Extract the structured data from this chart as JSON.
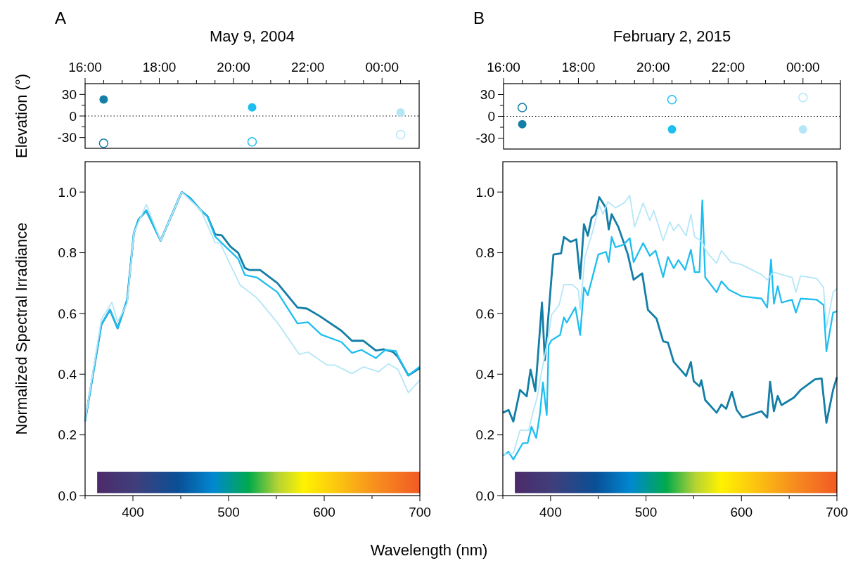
{
  "chart_data": [
    {
      "type": "scatter",
      "title": "May 9, 2004",
      "ylabel": "Elevation (°)",
      "annotations": [
        "A"
      ],
      "marker": "circle",
      "xlim": [
        16,
        25
      ],
      "xticks": [
        {
          "value": 16,
          "label": "16:00"
        },
        {
          "value": 16.5,
          "label": null
        },
        {
          "value": 17,
          "label": null
        },
        {
          "value": 17.5,
          "label": null
        },
        {
          "value": 18,
          "label": "18:00"
        },
        {
          "value": 18.5,
          "label": null
        },
        {
          "value": 19,
          "label": null
        },
        {
          "value": 19.5,
          "label": null
        },
        {
          "value": 20,
          "label": "20:00"
        },
        {
          "value": 20.5,
          "label": null
        },
        {
          "value": 21,
          "label": null
        },
        {
          "value": 21.5,
          "label": null
        },
        {
          "value": 22,
          "label": "22:00"
        },
        {
          "value": 22.5,
          "label": null
        },
        {
          "value": 23,
          "label": null
        },
        {
          "value": 23.5,
          "label": null
        },
        {
          "value": 24,
          "label": "00:00"
        },
        {
          "value": 24.5,
          "label": null
        },
        {
          "value": 25,
          "label": null
        }
      ],
      "ylim": [
        -45,
        45
      ],
      "yticks": [
        -30,
        {
          "value": -15,
          "label": null
        },
        0,
        {
          "value": 15,
          "label": null
        },
        30
      ],
      "ref_lines": [
        {
          "axis": "y",
          "value": 0,
          "color": "#000000",
          "line_style": "dotted"
        }
      ],
      "series": [
        {
          "color": "#137ea6",
          "x": [
            16.5
          ],
          "values": [
            23
          ]
        },
        {
          "color": "#137ea6",
          "x": [
            16.5
          ],
          "values": [
            -38
          ]
        },
        {
          "color": "#1ebef0",
          "x": [
            20.5
          ],
          "values": [
            12
          ]
        },
        {
          "color": "#1ebef0",
          "x": [
            20.5
          ],
          "values": [
            -36
          ]
        },
        {
          "color": "#b5e6f8",
          "x": [
            24.5
          ],
          "values": [
            5
          ]
        },
        {
          "color": "#b5e6f8",
          "x": [
            24.5
          ],
          "values": [
            -26
          ]
        }
      ]
    },
    {
      "type": "line",
      "ylabel": "Normalized Spectral Irradiance",
      "xlabel": "Wavelength (nm)",
      "xlim": [
        350,
        700
      ],
      "xticks": [
        {
          "value": 350,
          "label": null
        },
        400,
        {
          "value": 450,
          "label": null
        },
        500,
        {
          "value": 550,
          "label": null
        },
        600,
        {
          "value": 650,
          "label": null
        },
        700
      ],
      "ylim": [
        0,
        1.1
      ],
      "yticks": [
        {
          "value": 0,
          "label": "0.0"
        },
        0.2,
        0.4,
        0.6,
        0.8,
        {
          "value": 1,
          "label": "1.0"
        }
      ],
      "series": [
        {
          "color": "#137ea6",
          "x": [
            350,
            367,
            376,
            384,
            394,
            401,
            406,
            414,
            429,
            451,
            460,
            471,
            478,
            486,
            493,
            502,
            510,
            517,
            522,
            533,
            551,
            572,
            582,
            595,
            618,
            629,
            641,
            654,
            662,
            672,
            677,
            688,
            700
          ],
          "values": [
            0.245,
            0.563,
            0.612,
            0.551,
            0.645,
            0.865,
            0.91,
            0.939,
            0.84,
            1.0,
            0.98,
            0.94,
            0.92,
            0.86,
            0.857,
            0.82,
            0.8,
            0.75,
            0.743,
            0.743,
            0.7,
            0.62,
            0.616,
            0.592,
            0.543,
            0.51,
            0.51,
            0.478,
            0.482,
            0.473,
            0.457,
            0.396,
            0.42
          ]
        },
        {
          "color": "#1ebef0",
          "x": [
            350,
            367,
            376,
            384,
            394,
            401,
            406,
            414,
            429,
            451,
            460,
            471,
            478,
            486,
            510,
            517,
            530,
            551,
            572,
            583,
            597,
            618,
            629,
            639,
            654,
            664,
            675,
            677,
            688,
            700
          ],
          "values": [
            0.245,
            0.563,
            0.612,
            0.551,
            0.645,
            0.865,
            0.91,
            0.939,
            0.84,
            1.0,
            0.98,
            0.94,
            0.92,
            0.853,
            0.78,
            0.727,
            0.718,
            0.67,
            0.567,
            0.571,
            0.53,
            0.506,
            0.47,
            0.48,
            0.453,
            0.48,
            0.476,
            0.46,
            0.396,
            0.425
          ]
        },
        {
          "color": "#b5e6f8",
          "x": [
            350,
            367,
            378,
            384,
            394,
            401,
            414,
            429,
            451,
            471,
            486,
            491,
            512,
            530,
            551,
            574,
            583,
            603,
            611,
            629,
            641,
            657,
            667,
            677,
            688,
            700
          ],
          "values": [
            0.245,
            0.58,
            0.637,
            0.573,
            0.633,
            0.865,
            0.959,
            0.84,
            1.0,
            0.94,
            0.833,
            0.833,
            0.694,
            0.65,
            0.57,
            0.465,
            0.473,
            0.43,
            0.43,
            0.402,
            0.424,
            0.408,
            0.434,
            0.416,
            0.339,
            0.38
          ]
        }
      ]
    },
    {
      "type": "scatter",
      "title": "February 2, 2015",
      "annotations": [
        "B"
      ],
      "marker": "circle",
      "xlim": [
        16,
        25
      ],
      "xticks": [
        {
          "value": 16,
          "label": "16:00"
        },
        {
          "value": 16.5,
          "label": null
        },
        {
          "value": 17,
          "label": null
        },
        {
          "value": 17.5,
          "label": null
        },
        {
          "value": 18,
          "label": "18:00"
        },
        {
          "value": 18.5,
          "label": null
        },
        {
          "value": 19,
          "label": null
        },
        {
          "value": 19.5,
          "label": null
        },
        {
          "value": 20,
          "label": "20:00"
        },
        {
          "value": 20.5,
          "label": null
        },
        {
          "value": 21,
          "label": null
        },
        {
          "value": 21.5,
          "label": null
        },
        {
          "value": 22,
          "label": "22:00"
        },
        {
          "value": 22.5,
          "label": null
        },
        {
          "value": 23,
          "label": null
        },
        {
          "value": 23.5,
          "label": null
        },
        {
          "value": 24,
          "label": "00:00"
        },
        {
          "value": 24.5,
          "label": null
        },
        {
          "value": 25,
          "label": null
        }
      ],
      "ylim": [
        -45,
        45
      ],
      "yticks": [
        -30,
        {
          "value": -15,
          "label": null
        },
        0,
        {
          "value": 15,
          "label": null
        },
        30
      ],
      "ref_lines": [
        {
          "axis": "y",
          "value": 0,
          "color": "#000000",
          "line_style": "dotted"
        }
      ],
      "series": [
        {
          "color": "#137ea6",
          "x": [
            16.5
          ],
          "values": [
            12
          ]
        },
        {
          "color": "#137ea6",
          "x": [
            16.5
          ],
          "values": [
            -11
          ]
        },
        {
          "color": "#1ebef0",
          "x": [
            20.5
          ],
          "values": [
            23
          ]
        },
        {
          "color": "#1ebef0",
          "x": [
            20.5
          ],
          "values": [
            -18
          ]
        },
        {
          "color": "#b5e6f8",
          "x": [
            24
          ],
          "values": [
            26
          ]
        },
        {
          "color": "#b5e6f8",
          "x": [
            24
          ],
          "values": [
            -18
          ]
        }
      ]
    },
    {
      "type": "line",
      "xlim": [
        350,
        700
      ],
      "xticks": [
        {
          "value": 350,
          "label": null
        },
        400,
        {
          "value": 450,
          "label": null
        },
        500,
        {
          "value": 550,
          "label": null
        },
        600,
        {
          "value": 650,
          "label": null
        },
        700
      ],
      "ylim": [
        0,
        1.1
      ],
      "yticks": [
        {
          "value": 0,
          "label": "0.0"
        },
        0.2,
        0.4,
        0.6,
        0.8,
        {
          "value": 1,
          "label": "1.0"
        }
      ],
      "series": [
        {
          "color": "#137ea6",
          "x": [
            350,
            356,
            361,
            368,
            375,
            379,
            384,
            391,
            394,
            401,
            403,
            411,
            414,
            421,
            427,
            431,
            435,
            439,
            443,
            447,
            451,
            458,
            461,
            464,
            471,
            481,
            487,
            496,
            502,
            511,
            518,
            523,
            529,
            542,
            547,
            550,
            556,
            558,
            562,
            574,
            579,
            584,
            590,
            595,
            601,
            621,
            627,
            630,
            634,
            638,
            642,
            655,
            662,
            677,
            684,
            689,
            696,
            700
          ],
          "values": [
            0.273,
            0.282,
            0.244,
            0.348,
            0.327,
            0.415,
            0.344,
            0.636,
            0.446,
            0.72,
            0.794,
            0.798,
            0.852,
            0.836,
            0.844,
            0.715,
            0.894,
            0.856,
            0.915,
            0.927,
            0.983,
            0.948,
            0.877,
            0.927,
            0.885,
            0.794,
            0.711,
            0.732,
            0.612,
            0.583,
            0.508,
            0.504,
            0.441,
            0.394,
            0.44,
            0.377,
            0.36,
            0.38,
            0.315,
            0.273,
            0.3,
            0.286,
            0.342,
            0.282,
            0.257,
            0.278,
            0.257,
            0.375,
            0.278,
            0.328,
            0.298,
            0.323,
            0.348,
            0.383,
            0.386,
            0.24,
            0.348,
            0.39
          ]
        },
        {
          "color": "#1ebef0",
          "x": [
            350,
            356,
            361,
            371,
            376,
            380,
            385,
            389,
            392,
            396,
            398,
            401,
            410,
            414,
            417,
            426,
            431,
            435,
            439,
            450,
            458,
            461,
            464,
            468,
            476,
            483,
            487,
            497,
            504,
            510,
            518,
            523,
            529,
            534,
            541,
            547,
            551,
            556,
            559,
            562,
            574,
            579,
            587,
            600,
            621,
            627,
            631,
            634,
            638,
            642,
            653,
            657,
            662,
            679,
            686,
            689,
            696,
            700
          ],
          "values": [
            0.132,
            0.144,
            0.119,
            0.173,
            0.173,
            0.227,
            0.19,
            0.273,
            0.373,
            0.265,
            0.495,
            0.512,
            0.529,
            0.587,
            0.57,
            0.62,
            0.529,
            0.686,
            0.66,
            0.794,
            0.803,
            0.769,
            0.852,
            0.818,
            0.826,
            0.848,
            0.769,
            0.832,
            0.79,
            0.807,
            0.72,
            0.786,
            0.749,
            0.776,
            0.744,
            0.81,
            0.736,
            0.736,
            0.973,
            0.719,
            0.67,
            0.706,
            0.678,
            0.657,
            0.649,
            0.62,
            0.778,
            0.632,
            0.69,
            0.636,
            0.645,
            0.603,
            0.649,
            0.645,
            0.628,
            0.475,
            0.603,
            0.607
          ]
        },
        {
          "color": "#b5e6f8",
          "x": [
            350,
            361,
            368,
            377,
            381,
            386,
            390,
            398,
            401,
            409,
            414,
            423,
            429,
            431,
            436,
            444,
            451,
            455,
            460,
            468,
            477,
            483,
            488,
            497,
            504,
            508,
            518,
            525,
            529,
            534,
            542,
            547,
            551,
            559,
            562,
            567,
            574,
            579,
            589,
            600,
            621,
            627,
            634,
            642,
            653,
            657,
            662,
            679,
            686,
            689,
            696,
            700
          ],
          "values": [
            0.136,
            0.14,
            0.215,
            0.215,
            0.269,
            0.323,
            0.398,
            0.529,
            0.595,
            0.628,
            0.695,
            0.695,
            0.678,
            0.612,
            0.786,
            0.869,
            0.956,
            0.927,
            0.968,
            0.948,
            0.964,
            0.989,
            0.885,
            0.964,
            0.906,
            0.939,
            0.84,
            0.902,
            0.873,
            0.894,
            0.856,
            0.927,
            0.852,
            0.836,
            0.811,
            0.79,
            0.765,
            0.807,
            0.769,
            0.761,
            0.728,
            0.711,
            0.736,
            0.728,
            0.719,
            0.67,
            0.724,
            0.715,
            0.686,
            0.553,
            0.67,
            0.682
          ]
        }
      ]
    }
  ]
}
